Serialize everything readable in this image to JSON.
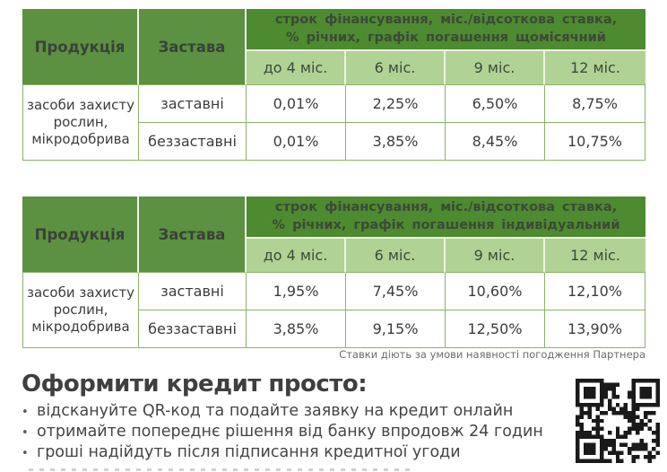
{
  "colors": {
    "header_green": "#4e8a2f",
    "header_cell_green": "#5b9140",
    "subheader_green": "#b0d294",
    "table_border_green": "#8ab568",
    "text_dark": "#3c3c3b",
    "qr_black": "#1a1a1a"
  },
  "tables": [
    {
      "product_header": "Продукція",
      "collateral_header": "Застава",
      "span_header_line1": "строк фінансування, міс./відсоткова ставка,",
      "span_header_line2": "% річних, графік погашення щомісячний",
      "terms": [
        "до 4 міс.",
        "6 міс.",
        "9 міс.",
        "12 міс."
      ],
      "product": "засоби захисту рослин, мікродобрива",
      "rows": [
        {
          "collateral": "заставні",
          "rates": [
            "0,01%",
            "2,25%",
            "6,50%",
            "8,75%"
          ]
        },
        {
          "collateral": "беззаставні",
          "rates": [
            "0,01%",
            "3,85%",
            "8,45%",
            "10,75%"
          ]
        }
      ]
    },
    {
      "product_header": "Продукція",
      "collateral_header": "Застава",
      "span_header_line1": "строк фінансування, міс./відсоткова ставка,",
      "span_header_line2": "% річних, графік погашення індивідуальний",
      "terms": [
        "до 4 міс.",
        "6 міс.",
        "9 міс.",
        "12 міс."
      ],
      "product": "засоби захисту рослин, мікродобрива",
      "rows": [
        {
          "collateral": "заставні",
          "rates": [
            "1,95%",
            "7,45%",
            "10,60%",
            "12,10%"
          ]
        },
        {
          "collateral": "беззаставні",
          "rates": [
            "3,85%",
            "9,15%",
            "12,50%",
            "13,90%"
          ]
        }
      ]
    }
  ],
  "note": "Ставки діють за умови наявності погодження Партнера",
  "cta": {
    "heading": "Оформити кредит просто:",
    "bullets": [
      "відскануйте QR-код та подайте заявку на кредит онлайн",
      "отримайте попереднє рішення від банку впродовж 24 годин",
      "гроші надійдуть після підписання кредитної угоди"
    ]
  },
  "qr": {
    "name": "qr-code"
  }
}
